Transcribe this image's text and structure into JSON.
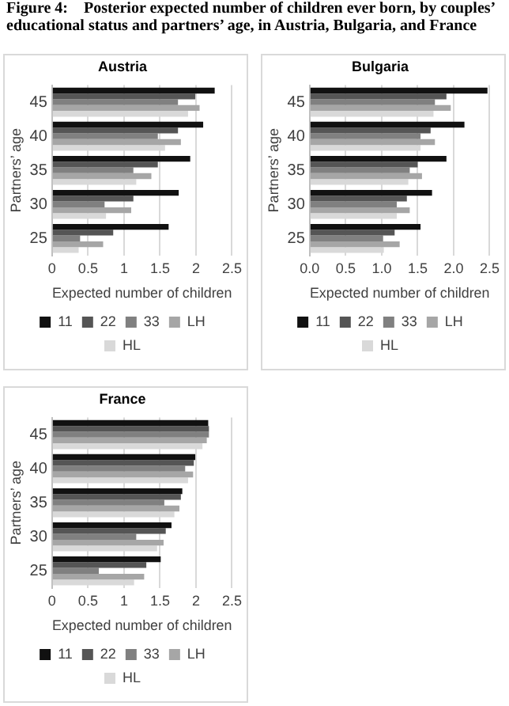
{
  "chart_data": [
    {
      "type": "bar",
      "orientation": "horizontal",
      "title": "Austria",
      "annotations": [
        "Figure 4: Posterior expected number of children ever born, by couples’ educational status and partners’ age, in Austria, Bulgaria, and France"
      ],
      "xlabel": "Expected number of children",
      "ylabel": "Partners’ age",
      "categories": [
        "45",
        "40",
        "35",
        "30",
        "25"
      ],
      "series": [
        {
          "name": "11",
          "color": "#111111",
          "values": [
            2.26,
            2.1,
            1.92,
            1.76,
            1.62
          ]
        },
        {
          "name": "22",
          "color": "#555555",
          "values": [
            1.99,
            1.75,
            1.47,
            1.13,
            0.85
          ]
        },
        {
          "name": "33",
          "color": "#808080",
          "values": [
            1.75,
            1.47,
            1.13,
            0.73,
            0.39
          ]
        },
        {
          "name": "LH",
          "color": "#a6a6a6",
          "values": [
            2.05,
            1.79,
            1.38,
            1.1,
            0.71
          ]
        },
        {
          "name": "HL",
          "color": "#d9d9d9",
          "values": [
            1.89,
            1.57,
            1.17,
            0.75,
            0.37
          ]
        }
      ],
      "xlim": [
        0,
        2.5
      ],
      "xticks": [
        0,
        0.5,
        1,
        1.5,
        2,
        2.5
      ],
      "grid": "x",
      "legend": "bottom"
    },
    {
      "type": "bar",
      "orientation": "horizontal",
      "title": "Bulgaria",
      "xlabel": "Expected number of children",
      "ylabel": "Partners’ age",
      "categories": [
        "45",
        "40",
        "35",
        "30",
        "25"
      ],
      "series": [
        {
          "name": "11",
          "color": "#111111",
          "values": [
            2.47,
            2.15,
            1.9,
            1.7,
            1.54
          ]
        },
        {
          "name": "22",
          "color": "#555555",
          "values": [
            1.9,
            1.68,
            1.5,
            1.35,
            1.18
          ]
        },
        {
          "name": "33",
          "color": "#808080",
          "values": [
            1.74,
            1.54,
            1.39,
            1.21,
            1.02
          ]
        },
        {
          "name": "LH",
          "color": "#a6a6a6",
          "values": [
            1.96,
            1.74,
            1.56,
            1.39,
            1.25
          ]
        },
        {
          "name": "HL",
          "color": "#d9d9d9",
          "values": [
            1.72,
            1.54,
            1.37,
            1.21,
            1.03
          ]
        }
      ],
      "xlim": [
        0,
        2.5
      ],
      "xticks": [
        {
          "value": 0,
          "label": "0.0"
        },
        0.5,
        {
          "value": 1,
          "label": "1.0"
        },
        1.5,
        {
          "value": 2,
          "label": "2.0"
        },
        2.5
      ],
      "grid": "x",
      "legend": "bottom"
    },
    {
      "type": "bar",
      "orientation": "horizontal",
      "title": "France",
      "xlabel": "Expected number of children",
      "ylabel": "Partners’ age",
      "categories": [
        "45",
        "40",
        "35",
        "30",
        "25"
      ],
      "series": [
        {
          "name": "11",
          "color": "#111111",
          "values": [
            2.17,
            1.99,
            1.81,
            1.66,
            1.51
          ]
        },
        {
          "name": "22",
          "color": "#555555",
          "values": [
            2.18,
            1.97,
            1.79,
            1.58,
            1.31
          ]
        },
        {
          "name": "33",
          "color": "#808080",
          "values": [
            2.18,
            1.85,
            1.56,
            1.17,
            0.65
          ]
        },
        {
          "name": "LH",
          "color": "#a6a6a6",
          "values": [
            2.15,
            1.96,
            1.77,
            1.55,
            1.28
          ]
        },
        {
          "name": "HL",
          "color": "#d9d9d9",
          "values": [
            2.09,
            1.89,
            1.7,
            1.46,
            1.14
          ]
        }
      ],
      "xlim": [
        0,
        2.5
      ],
      "xticks": [
        0,
        0.5,
        1,
        1.5,
        2,
        2.5
      ],
      "grid": "x",
      "legend": "bottom"
    }
  ]
}
